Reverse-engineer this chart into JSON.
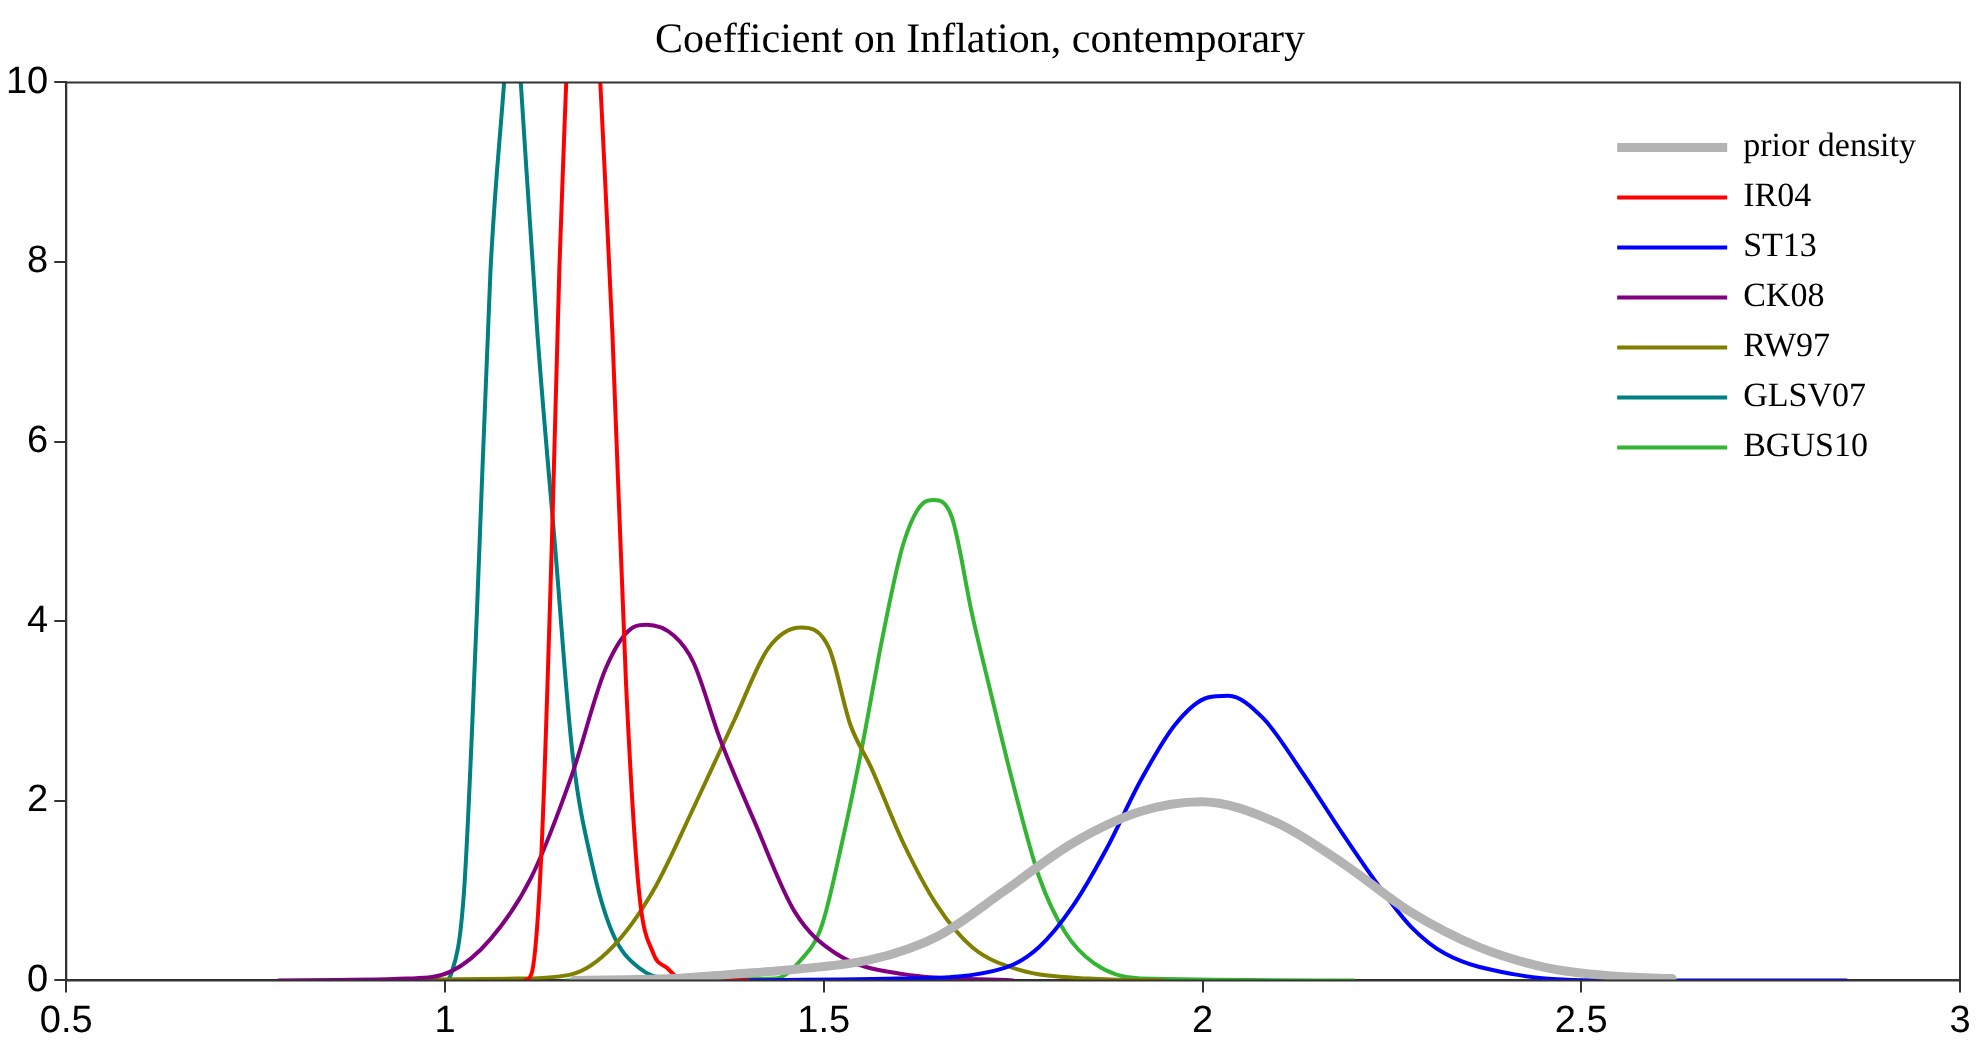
{
  "chart_data": {
    "type": "line",
    "title": "Coefficient on Inflation, contemporary",
    "xlim": [
      0.5,
      3
    ],
    "xticks": [
      0.5,
      1,
      1.5,
      2,
      2.5,
      3
    ],
    "ylim": [
      0,
      10
    ],
    "yticks": [
      0,
      2,
      4,
      6,
      8,
      10
    ],
    "grid": false,
    "legend": "top right",
    "marker": "none",
    "line_style": "solid",
    "series": [
      {
        "name": "prior density",
        "color": "#b3b3b3",
        "x": [
          1.17,
          1.3,
          1.382,
          1.47,
          1.562,
          1.65,
          1.739,
          1.829,
          1.918,
          1.998,
          2.097,
          2.186,
          2.275,
          2.365,
          2.455,
          2.54,
          2.62
        ],
        "values": [
          0,
          0.02,
          0.07,
          0.13,
          0.23,
          0.49,
          1.0,
          1.53,
          1.88,
          1.99,
          1.76,
          1.3,
          0.76,
          0.37,
          0.14,
          0.05,
          0.02
        ]
      },
      {
        "name": "IR04",
        "color": "#ff0000",
        "x": [
          1.105,
          1.114,
          1.127,
          1.141,
          1.151,
          1.16,
          1.18,
          1.205,
          1.221,
          1.239,
          1.256,
          1.275,
          1.293,
          1.311,
          1.4
        ],
        "values": [
          0,
          0.07,
          1.38,
          4.86,
          7.94,
          10,
          null,
          10,
          7.2,
          3.3,
          1.0,
          0.3,
          0.14,
          0.02,
          0
        ]
      },
      {
        "name": "ST13",
        "color": "#0000ff",
        "x": [
          1.33,
          1.6,
          1.739,
          1.784,
          1.829,
          1.873,
          1.918,
          1.964,
          2.007,
          2.034,
          2.08,
          2.133,
          2.186,
          2.232,
          2.275,
          2.32,
          2.41,
          2.54,
          2.85
        ],
        "values": [
          0,
          0.02,
          0.14,
          0.37,
          0.83,
          1.46,
          2.22,
          2.85,
          3.15,
          3.17,
          2.92,
          2.3,
          1.62,
          1.06,
          0.6,
          0.3,
          0.07,
          0,
          0
        ]
      },
      {
        "name": "CK08",
        "color": "#800080",
        "x": [
          0.78,
          0.95,
          1.008,
          1.06,
          1.114,
          1.168,
          1.212,
          1.248,
          1.266,
          1.302,
          1.328,
          1.363,
          1.409,
          1.462,
          1.516,
          1.605,
          1.75
        ],
        "values": [
          0,
          0.02,
          0.1,
          0.46,
          1.15,
          2.3,
          3.47,
          3.93,
          3.96,
          3.84,
          3.54,
          2.69,
          1.76,
          0.76,
          0.3,
          0.07,
          0
        ]
      },
      {
        "name": "RW97",
        "color": "#808000",
        "x": [
          0.85,
          1.095,
          1.168,
          1.221,
          1.275,
          1.328,
          1.382,
          1.427,
          1.47,
          1.507,
          1.535,
          1.562,
          1.605,
          1.65,
          1.696,
          1.757,
          1.85,
          1.95
        ],
        "values": [
          0,
          0.02,
          0.07,
          0.37,
          1.0,
          1.92,
          2.9,
          3.7,
          3.93,
          3.7,
          2.85,
          2.38,
          1.53,
          0.83,
          0.37,
          0.12,
          0.02,
          0
        ]
      },
      {
        "name": "GLSV07",
        "color": "#008080",
        "x": [
          0.9,
          1.0,
          1.008,
          1.025,
          1.042,
          1.06,
          1.078,
          1.09,
          1.1,
          1.122,
          1.145,
          1.168,
          1.194,
          1.221,
          1.256,
          1.293,
          1.35
        ],
        "values": [
          0,
          0,
          0.07,
          0.98,
          4.07,
          7.9,
          10,
          null,
          10,
          7.2,
          4.86,
          2.55,
          1.3,
          0.53,
          0.14,
          0.02,
          0
        ]
      },
      {
        "name": "BGUS10",
        "color": "#33b533",
        "x": [
          1.16,
          1.436,
          1.47,
          1.497,
          1.524,
          1.551,
          1.578,
          1.605,
          1.632,
          1.645,
          1.669,
          1.696,
          1.722,
          1.749,
          1.784,
          1.819,
          1.857,
          1.918,
          2.2
        ],
        "values": [
          0,
          0.02,
          0.23,
          0.6,
          1.53,
          2.62,
          3.84,
          4.86,
          5.32,
          5.35,
          5.16,
          4.07,
          3.15,
          2.22,
          1.16,
          0.53,
          0.19,
          0.02,
          0
        ]
      }
    ]
  }
}
